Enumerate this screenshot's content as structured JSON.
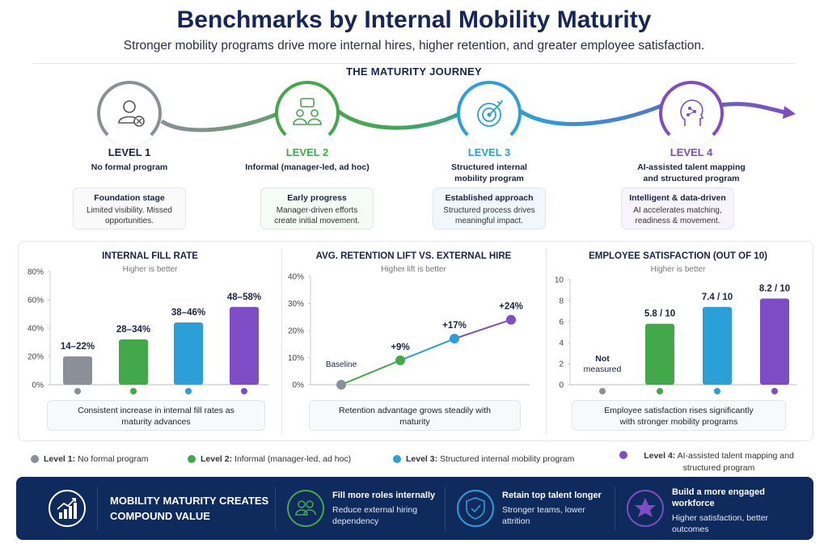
{
  "header": {
    "title": "Benchmarks by Internal Mobility Maturity",
    "subtitle": "Stronger mobility programs drive more internal hires, higher retention, and greater employee satisfaction.",
    "journey_title": "THE MATURITY JOURNEY"
  },
  "colors": {
    "level1": "#8a8f98",
    "level2": "#43a84a",
    "level3": "#2a9fd8",
    "level4": "#7e4cc4",
    "navy": "#0f2a5c"
  },
  "levels": [
    {
      "name": "LEVEL 1",
      "desc": "No formal program",
      "box_title": "Foundation stage",
      "box_text": "Limited visibility. Missed opportunities.",
      "icon": "person-x-icon"
    },
    {
      "name": "LEVEL 2",
      "desc": "Informal (manager-led, ad hoc)",
      "box_title": "Early progress",
      "box_text": "Manager-driven efforts create initial movement.",
      "icon": "people-chat-icon"
    },
    {
      "name": "LEVEL 3",
      "desc": "Structured internal mobility program",
      "box_title": "Established approach",
      "box_text": "Structured process drives meaningful impact.",
      "icon": "target-icon"
    },
    {
      "name": "LEVEL 4",
      "desc": "AI-assisted talent mapping and structured program",
      "box_title": "Intelligent & data-driven",
      "box_text": "AI accelerates matching, readiness & movement.",
      "icon": "ai-brain-icon"
    }
  ],
  "chart_data": [
    {
      "type": "bar",
      "title": "INTERNAL FILL RATE",
      "subtitle": "Higher is better",
      "categories": [
        "Level 1",
        "Level 2",
        "Level 3",
        "Level 4"
      ],
      "values": [
        20,
        32,
        44,
        55
      ],
      "labels": [
        "14–22%",
        "28–34%",
        "38–46%",
        "48–58%"
      ],
      "ylim": [
        0,
        80
      ],
      "yticks": [
        "0%",
        "20%",
        "40%",
        "60%",
        "80%"
      ],
      "caption": "Consistent increase in internal fill rates as maturity advances"
    },
    {
      "type": "line",
      "title": "AVG. RETENTION LIFT VS. EXTERNAL HIRE",
      "subtitle": "Higher lift is better",
      "categories": [
        "Level 1",
        "Level 2",
        "Level 3",
        "Level 4"
      ],
      "values": [
        0,
        9,
        17,
        24
      ],
      "labels": [
        "Baseline",
        "+9%",
        "+17%",
        "+24%"
      ],
      "ylim": [
        0,
        40
      ],
      "yticks": [
        "0%",
        "10%",
        "20%",
        "30%",
        "40%"
      ],
      "caption": "Retention advantage grows steadily with maturity"
    },
    {
      "type": "bar",
      "title": "EMPLOYEE SATISFACTION (OUT OF 10)",
      "subtitle": "Higher is better",
      "categories": [
        "Level 1",
        "Level 2",
        "Level 3",
        "Level 4"
      ],
      "values": [
        null,
        5.8,
        7.4,
        8.2
      ],
      "labels": [
        "Not measured",
        "5.8 / 10",
        "7.4 / 10",
        "8.2 / 10"
      ],
      "ylim": [
        0,
        10
      ],
      "yticks": [
        "0",
        "2",
        "4",
        "6",
        "8",
        "10"
      ],
      "caption": "Employee satisfaction rises significantly with stronger mobility programs"
    }
  ],
  "legend": [
    {
      "key": "Level 1:",
      "text": "No formal program"
    },
    {
      "key": "Level 2:",
      "text": "Informal (manager-led, ad hoc)"
    },
    {
      "key": "Level 3:",
      "text": "Structured internal mobility program"
    },
    {
      "key": "Level 4:",
      "text": "AI-assisted talent mapping and structured program"
    }
  ],
  "banner": {
    "headline": "MOBILITY MATURITY CREATES COMPOUND VALUE",
    "items": [
      {
        "title": "Fill more roles internally",
        "text": "Reduce external hiring dependency",
        "icon": "people-icon"
      },
      {
        "title": "Retain top talent longer",
        "text": "Stronger teams, lower attrition",
        "icon": "shield-check-icon"
      },
      {
        "title": "Build a more engaged workforce",
        "text": "Higher satisfaction, better outcomes",
        "icon": "star-icon"
      }
    ]
  }
}
